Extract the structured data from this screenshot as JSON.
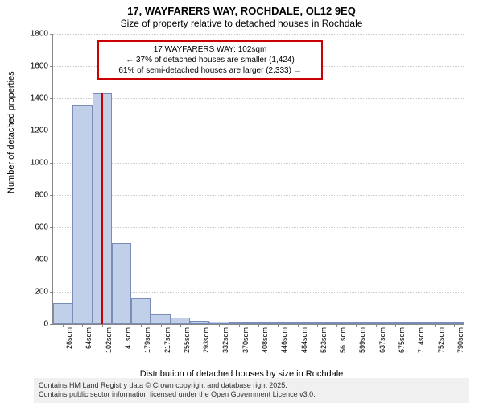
{
  "title_main": "17, WAYFARERS WAY, ROCHDALE, OL12 9EQ",
  "title_sub": "Size of property relative to detached houses in Rochdale",
  "y_axis_label": "Number of detached properties",
  "x_axis_label": "Distribution of detached houses by size in Rochdale",
  "footer_line1": "Contains HM Land Registry data © Crown copyright and database right 2025.",
  "footer_line2": "Contains public sector information licensed under the Open Government Licence v3.0.",
  "annotation": {
    "line1": "17 WAYFARERS WAY: 102sqm",
    "line2": "← 37% of detached houses are smaller (1,424)",
    "line3": "61% of semi-detached houses are larger (2,333) →"
  },
  "chart": {
    "type": "histogram",
    "ylim": [
      0,
      1800
    ],
    "ytick_step": 200,
    "y_ticks": [
      0,
      200,
      400,
      600,
      800,
      1000,
      1200,
      1400,
      1600,
      1800
    ],
    "bar_color": "#c2cfe8",
    "bar_border_color": "#7a8db8",
    "highlight_color": "#cc0000",
    "grid_color": "#cccccc",
    "background_color": "#ffffff",
    "label_fontsize": 11,
    "title_fontsize": 13,
    "tick_fontsize": 10,
    "x_tick_labels": [
      "26sqm",
      "64sqm",
      "102sqm",
      "141sqm",
      "179sqm",
      "217sqm",
      "255sqm",
      "293sqm",
      "332sqm",
      "370sqm",
      "408sqm",
      "446sqm",
      "484sqm",
      "523sqm",
      "561sqm",
      "599sqm",
      "637sqm",
      "675sqm",
      "714sqm",
      "752sqm",
      "790sqm"
    ],
    "highlight_x_index": 2,
    "highlight_height": 1430,
    "bars": [
      {
        "value": 130
      },
      {
        "value": 1360
      },
      {
        "value": 1430
      },
      {
        "value": 500
      },
      {
        "value": 160
      },
      {
        "value": 60
      },
      {
        "value": 40
      },
      {
        "value": 20
      },
      {
        "value": 15
      },
      {
        "value": 12
      },
      {
        "value": 10
      },
      {
        "value": 8
      },
      {
        "value": 6
      },
      {
        "value": 4
      },
      {
        "value": 4
      },
      {
        "value": 3
      },
      {
        "value": 2
      },
      {
        "value": 2
      },
      {
        "value": 2
      },
      {
        "value": 1
      },
      {
        "value": 1
      }
    ]
  }
}
